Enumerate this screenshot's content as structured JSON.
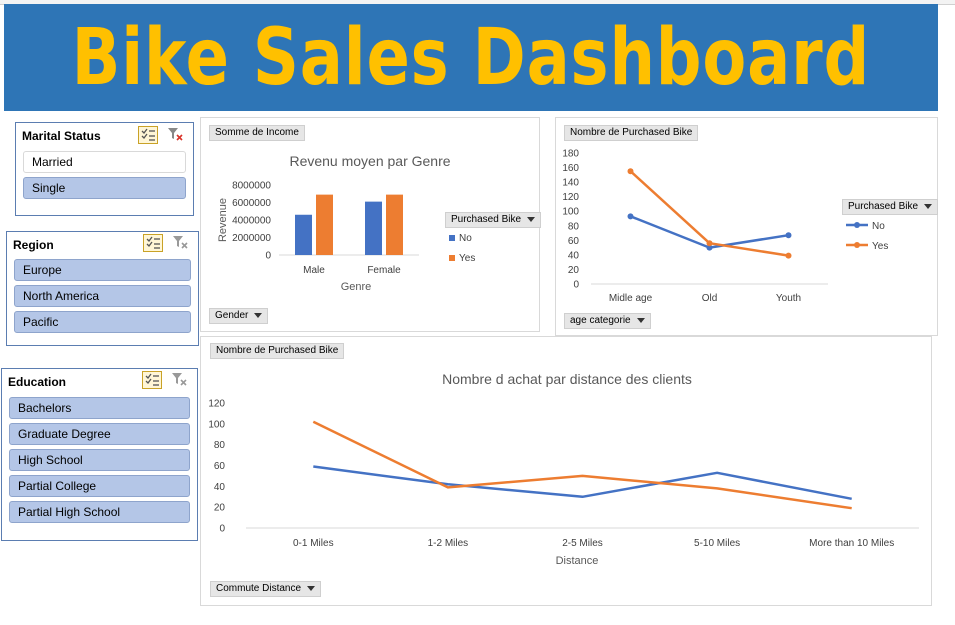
{
  "dashboard": {
    "title": "Bike Sales Dashboard"
  },
  "colors": {
    "banner": "#2e75b6",
    "title": "#ffc000",
    "series_no": "#4472c4",
    "series_yes": "#ed7d31",
    "slicer_selected": "#b4c6e7"
  },
  "slicers": {
    "marital": {
      "title": "Marital Status",
      "items": [
        {
          "label": "Married",
          "selected": false
        },
        {
          "label": "Single",
          "selected": true
        }
      ]
    },
    "region": {
      "title": "Region",
      "items": [
        {
          "label": "Europe",
          "selected": true
        },
        {
          "label": "North America",
          "selected": true
        },
        {
          "label": "Pacific",
          "selected": true
        }
      ]
    },
    "education": {
      "title": "Education",
      "items": [
        {
          "label": "Bachelors",
          "selected": true
        },
        {
          "label": "Graduate Degree",
          "selected": true
        },
        {
          "label": "High School",
          "selected": true
        },
        {
          "label": "Partial College",
          "selected": true
        },
        {
          "label": "Partial High School",
          "selected": true
        }
      ]
    }
  },
  "charts": {
    "income": {
      "value_button": "Somme de Income",
      "axis_button": "Gender",
      "legend_button": "Purchased Bike"
    },
    "age": {
      "value_button": "Nombre de Purchased Bike",
      "axis_button": "age categorie",
      "legend_button": "Purchased Bike"
    },
    "distance": {
      "value_button": "Nombre de Purchased Bike",
      "axis_button": "Commute Distance"
    }
  },
  "chart_data": [
    {
      "type": "bar",
      "title": "Revenu moyen par Genre",
      "xlabel": "Genre",
      "ylabel": "Revenue",
      "categories": [
        "Male",
        "Female"
      ],
      "series": [
        {
          "name": "No",
          "values": [
            4600000,
            6100000
          ]
        },
        {
          "name": "Yes",
          "values": [
            6900000,
            6900000
          ]
        }
      ],
      "ylim": [
        0,
        8000000
      ],
      "yticks": [
        "0",
        "2000000",
        "4000000",
        "6000000",
        "8000000"
      ],
      "legend": "right",
      "grid": false
    },
    {
      "type": "line",
      "title": "",
      "xlabel": "",
      "ylabel": "",
      "categories": [
        "Midle age",
        "Old",
        "Youth"
      ],
      "series": [
        {
          "name": "No",
          "values": [
            93,
            50,
            67
          ]
        },
        {
          "name": "Yes",
          "values": [
            155,
            56,
            39
          ]
        }
      ],
      "ylim": [
        0,
        180
      ],
      "yticks": [
        "0",
        "20",
        "40",
        "60",
        "80",
        "100",
        "120",
        "140",
        "160",
        "180"
      ],
      "legend": "right",
      "grid": false
    },
    {
      "type": "line",
      "title": "Nombre d achat par distance des clients",
      "xlabel": "Distance",
      "ylabel": "",
      "categories": [
        "0-1 Miles",
        "1-2 Miles",
        "2-5 Miles",
        "5-10 Miles",
        "More than 10 Miles"
      ],
      "series": [
        {
          "name": "No",
          "values": [
            59,
            42,
            30,
            53,
            28
          ]
        },
        {
          "name": "Yes",
          "values": [
            102,
            39,
            50,
            38,
            19
          ]
        }
      ],
      "ylim": [
        0,
        120
      ],
      "yticks": [
        "0",
        "20",
        "40",
        "60",
        "80",
        "100",
        "120"
      ],
      "legend": "none",
      "grid": false
    }
  ]
}
